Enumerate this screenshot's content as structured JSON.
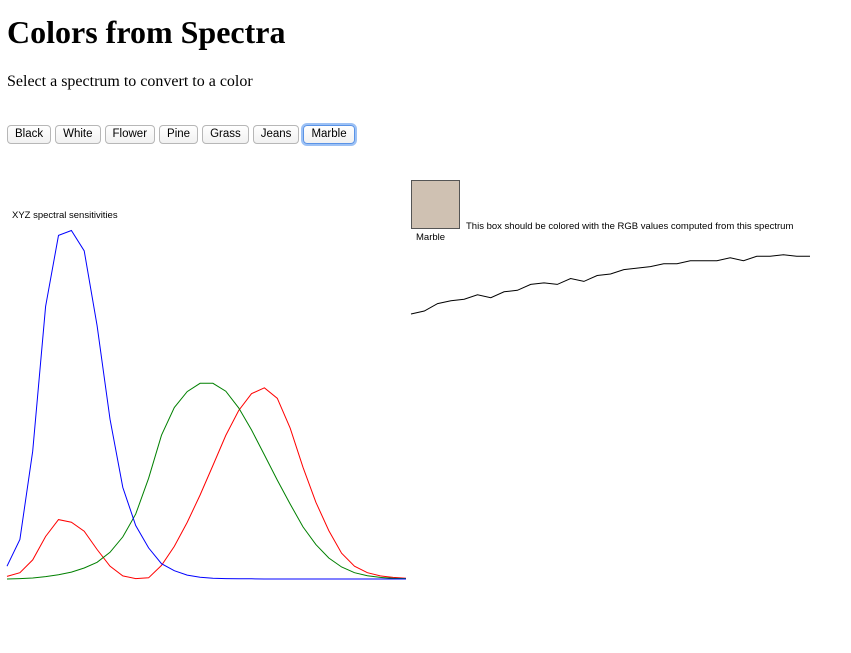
{
  "page": {
    "title": "Colors from Spectra",
    "subtitle": "Select a spectrum to convert to a color"
  },
  "buttons": [
    {
      "label": "Black",
      "selected": false
    },
    {
      "label": "White",
      "selected": false
    },
    {
      "label": "Flower",
      "selected": false
    },
    {
      "label": "Pine",
      "selected": false
    },
    {
      "label": "Grass",
      "selected": false
    },
    {
      "label": "Jeans",
      "selected": false
    },
    {
      "label": "Marble",
      "selected": true
    }
  ],
  "color_box": {
    "name": "Marble",
    "color": "#cfc1b2",
    "note": "This box should be colored with the RGB values computed from this spectrum"
  },
  "chart_data": [
    {
      "type": "line",
      "title": "XYZ spectral sensitivities",
      "x": [
        0,
        1,
        2,
        3,
        4,
        5,
        6,
        7,
        8,
        9,
        10,
        11,
        12,
        13,
        14,
        15,
        16,
        17,
        18,
        19,
        20,
        21,
        22,
        23,
        24,
        25,
        26,
        27,
        28,
        29,
        30,
        31
      ],
      "series": [
        {
          "color": "#ff0000",
          "values": [
            0.013,
            0.032,
            0.097,
            0.216,
            0.302,
            0.289,
            0.243,
            0.15,
            0.065,
            0.016,
            0.002,
            0.006,
            0.069,
            0.166,
            0.288,
            0.427,
            0.577,
            0.73,
            0.857,
            0.942,
            0.972,
            0.919,
            0.767,
            0.568,
            0.39,
            0.246,
            0.131,
            0.065,
            0.032,
            0.016,
            0.008,
            0.004
          ]
        },
        {
          "color": "#008000",
          "values": [
            0.0,
            0.002,
            0.005,
            0.012,
            0.022,
            0.035,
            0.056,
            0.085,
            0.136,
            0.214,
            0.33,
            0.512,
            0.731,
            0.872,
            0.953,
            0.995,
            0.995,
            0.955,
            0.87,
            0.758,
            0.631,
            0.503,
            0.381,
            0.265,
            0.175,
            0.107,
            0.061,
            0.032,
            0.017,
            0.008,
            0.004,
            0.002
          ]
        },
        {
          "color": "#0000ff",
          "values": [
            0.065,
            0.201,
            0.65,
            1.386,
            1.747,
            1.772,
            1.669,
            1.288,
            0.813,
            0.466,
            0.272,
            0.158,
            0.078,
            0.042,
            0.02,
            0.009,
            0.004,
            0.002,
            0.001,
            0.001,
            0.0,
            0.0,
            0.0,
            0.0,
            0.0,
            0.0,
            0.0,
            0.0,
            0.0,
            0.0,
            0.0,
            0.0
          ]
        }
      ],
      "ylim": [
        0,
        1.8
      ]
    },
    {
      "type": "line",
      "x": [
        0,
        1,
        2,
        3,
        4,
        5,
        6,
        7,
        8,
        9,
        10,
        11,
        12,
        13,
        14,
        15,
        16,
        17,
        18,
        19,
        20,
        21,
        22,
        23,
        24,
        25,
        26,
        27,
        28,
        29,
        30
      ],
      "series": [
        {
          "color": "#000000",
          "values": [
            0.5,
            0.52,
            0.57,
            0.59,
            0.6,
            0.63,
            0.61,
            0.65,
            0.66,
            0.7,
            0.71,
            0.7,
            0.74,
            0.72,
            0.76,
            0.77,
            0.8,
            0.81,
            0.82,
            0.84,
            0.84,
            0.86,
            0.86,
            0.86,
            0.88,
            0.86,
            0.89,
            0.89,
            0.9,
            0.89,
            0.89
          ]
        }
      ],
      "ylim": [
        0,
        1
      ]
    }
  ]
}
